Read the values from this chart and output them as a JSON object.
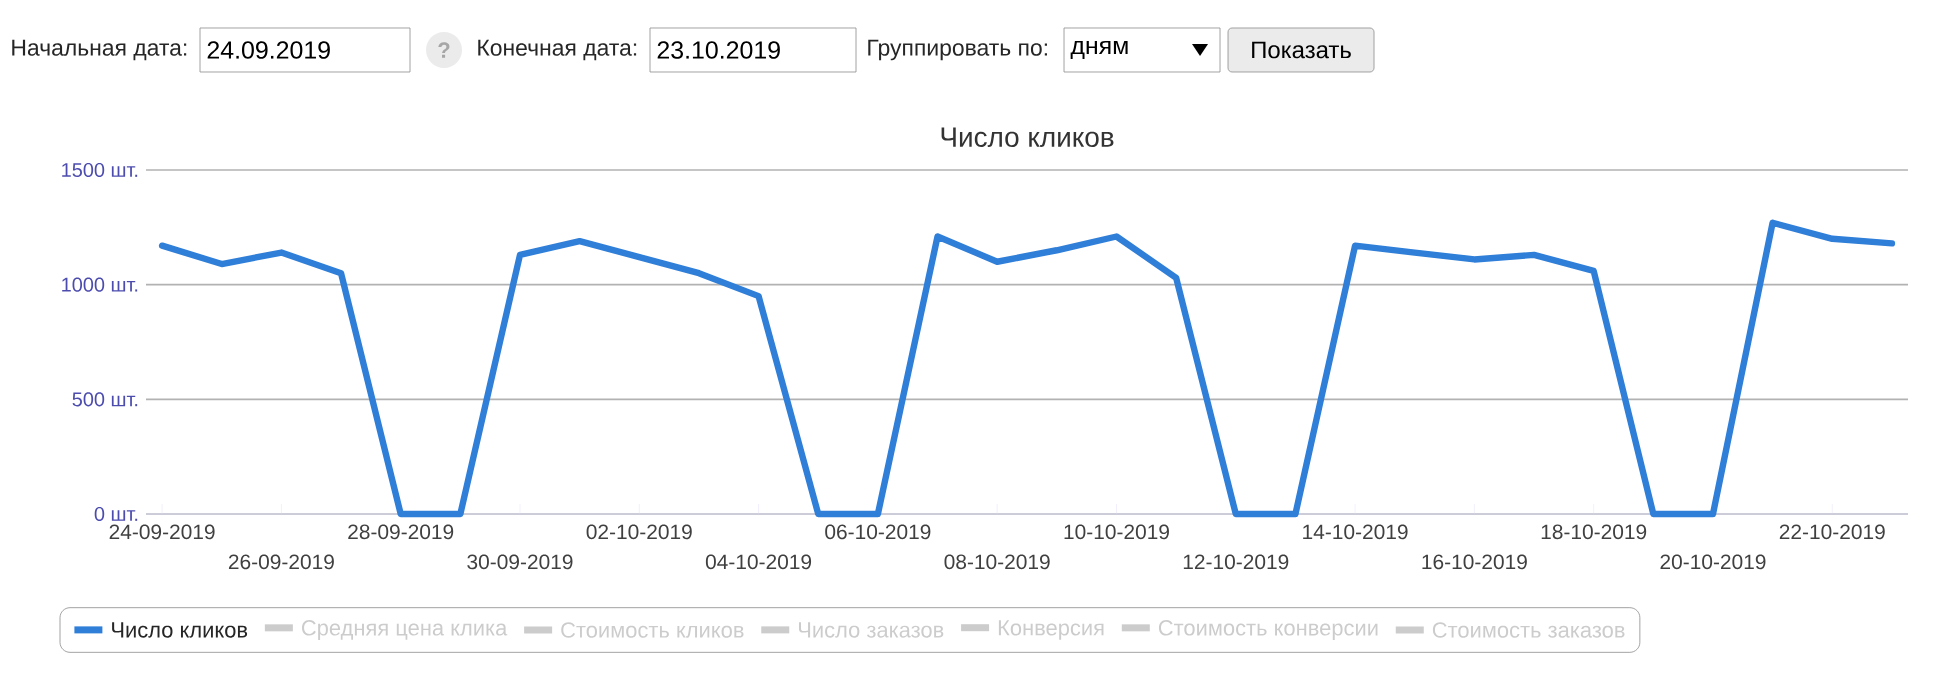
{
  "chart_data": {
    "type": "line",
    "title": "Число кликов",
    "categories": [
      "24-09-2019",
      null,
      "26-09-2019",
      null,
      "28-09-2019",
      null,
      "30-09-2019",
      null,
      "02-10-2019",
      null,
      "04-10-2019",
      null,
      "06-10-2019",
      null,
      "08-10-2019",
      null,
      "10-10-2019",
      null,
      "12-10-2019",
      null,
      "14-10-2019",
      null,
      "16-10-2019",
      null,
      "18-10-2019",
      null,
      "20-10-2019",
      null,
      "22-10-2019",
      null
    ],
    "series": [
      {
        "name": "Число кликов",
        "color": "#2f7ed8",
        "values": [
          1170,
          1090,
          1140,
          1050,
          0,
          0,
          1130,
          1190,
          1120,
          1050,
          950,
          0,
          0,
          1210,
          1100,
          1150,
          1210,
          1030,
          0,
          0,
          1170,
          1140,
          1110,
          1130,
          1060,
          0,
          0,
          1270,
          1200,
          1180
        ]
      },
      {
        "name": "Средняя цена клика",
        "color": "#cccccc",
        "values": [
          null,
          null,
          null,
          null,
          null,
          null,
          null,
          null,
          null,
          null,
          null,
          null,
          null,
          null,
          null,
          null,
          null,
          null,
          null,
          null,
          null,
          null,
          null,
          null,
          null,
          null,
          null,
          null,
          null,
          null
        ]
      },
      {
        "name": "Стоимость кликов",
        "color": "#cccccc",
        "values": [
          null,
          null,
          null,
          null,
          null,
          null,
          null,
          null,
          null,
          null,
          null,
          null,
          null,
          null,
          null,
          null,
          null,
          null,
          null,
          null,
          null,
          null,
          null,
          null,
          null,
          null,
          null,
          null,
          null,
          null
        ]
      },
      {
        "name": "Число заказов",
        "color": "#cccccc",
        "values": [
          null,
          null,
          null,
          null,
          null,
          null,
          null,
          null,
          null,
          null,
          null,
          null,
          null,
          null,
          null,
          null,
          null,
          null,
          null,
          null,
          null,
          null,
          null,
          null,
          null,
          null,
          null,
          null,
          null,
          null
        ]
      },
      {
        "name": "Конверсия",
        "color": "#cccccc",
        "values": [
          null,
          null,
          null,
          null,
          null,
          null,
          null,
          null,
          null,
          null,
          null,
          null,
          null,
          null,
          null,
          null,
          null,
          null,
          null,
          null,
          null,
          null,
          null,
          null,
          null,
          null,
          null,
          null,
          null,
          null
        ]
      },
      {
        "name": "Стоимость конверсии",
        "color": "#cccccc",
        "values": [
          null,
          null,
          null,
          null,
          null,
          null,
          null,
          null,
          null,
          null,
          null,
          null,
          null,
          null,
          null,
          null,
          null,
          null,
          null,
          null,
          null,
          null,
          null,
          null,
          null,
          null,
          null,
          null,
          null,
          null
        ]
      },
      {
        "name": "Стоимость заказов",
        "color": "#cccccc",
        "values": [
          null,
          null,
          null,
          null,
          null,
          null,
          null,
          null,
          null,
          null,
          null,
          null,
          null,
          null,
          null,
          null,
          null,
          null,
          null,
          null,
          null,
          null,
          null,
          null,
          null,
          null,
          null,
          null,
          null,
          null
        ]
      }
    ],
    "ylim": [
      0,
      1500
    ],
    "yticks": [
      {
        "value": 0,
        "label": "0 шт."
      },
      {
        "value": 500,
        "label": "500 шт."
      },
      {
        "value": 1000,
        "label": "1000 шт."
      },
      {
        "value": 1500,
        "label": "1500 шт."
      }
    ],
    "grid": "y",
    "legend": "bottom",
    "annotations": [
      "Начальная дата:",
      "24.09.2019",
      "?",
      "Конечная дата:",
      "23.10.2019",
      "Группировать по:",
      "дням",
      "Показать"
    ]
  }
}
